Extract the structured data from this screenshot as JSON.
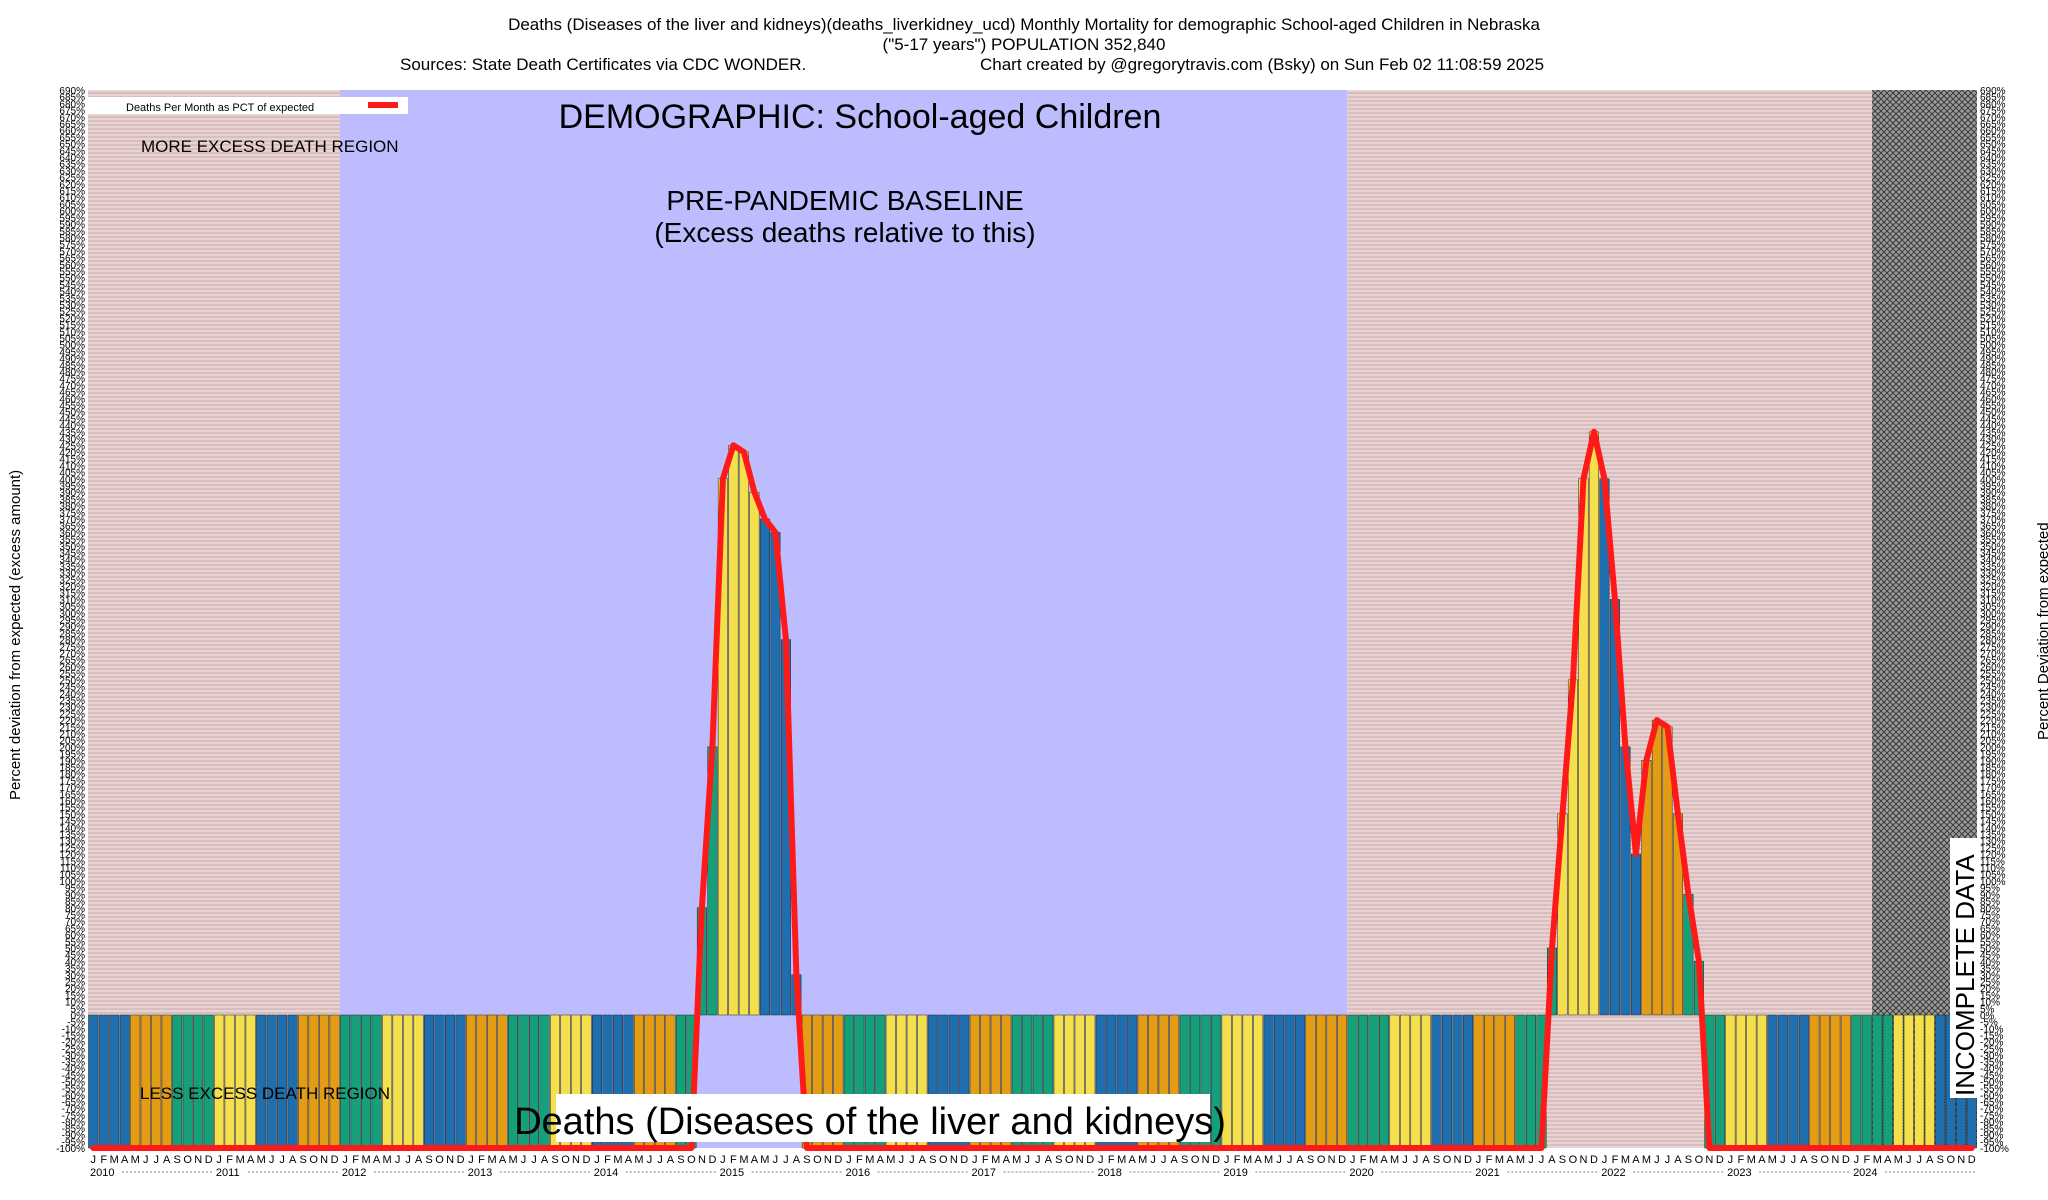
{
  "header": {
    "line1": "Deaths (Diseases of the liver and kidneys)(deaths_liverkidney_ucd) Monthly Mortality for demographic School-aged Children in Nebraska",
    "line2": "(\"5-17 years\") POPULATION 352,840",
    "sources": "Sources: State Death Certificates via CDC WONDER.",
    "credit": "Chart created by @gregorytravis.com (Bsky) on Sun Feb 02 11:08:59 2025"
  },
  "labels": {
    "demographic": "DEMOGRAPHIC: School-aged Children",
    "more_region": "MORE EXCESS DEATH REGION",
    "less_region": "LESS EXCESS DEATH REGION",
    "baseline_1": "PRE-PANDEMIC BASELINE",
    "baseline_2": "(Excess deaths relative to this)",
    "cause": "Deaths (Diseases of the liver and kidneys)",
    "incomplete": "INCOMPLETE DATA",
    "legend": "Deaths Per Month as PCT of expected",
    "ylabel_left": "Percent deviation from expected (excess amount)",
    "ylabel_right": "Percent Deviation from expected"
  },
  "colors": {
    "excess_region": "#e4c8c8",
    "baseline_region": "#bcbcff",
    "incomplete_region": "#8a8a8a",
    "curve": "#ff1a1a",
    "bar_palette": [
      "#1f6fae",
      "#e39d14",
      "#16a07a",
      "#f4e04d"
    ]
  },
  "chart_data": {
    "type": "bar",
    "title": "Deaths (Diseases of the liver and kidneys)(deaths_liverkidney_ucd) Monthly Mortality for demographic School-aged Children in Nebraska",
    "ylabel": "Percent deviation from expected (excess amount)",
    "ylim": [
      -100,
      690
    ],
    "y_ticks_step": 5,
    "start": "2010-01",
    "years": [
      "2010",
      "2011",
      "2012",
      "2013",
      "2014",
      "2015",
      "2016",
      "2017",
      "2018",
      "2019",
      "2020",
      "2021",
      "2022",
      "2023",
      "2024"
    ],
    "month_letters": [
      "J",
      "F",
      "M",
      "A",
      "M",
      "J",
      "J",
      "A",
      "S",
      "O",
      "N",
      "D"
    ],
    "regions": [
      {
        "name": "more/less excess",
        "from": "2010-01",
        "to": "2011-12"
      },
      {
        "name": "pre-pandemic baseline",
        "from": "2012-01",
        "to": "2019-12"
      },
      {
        "name": "more/less excess",
        "from": "2020-01",
        "to": "2024-03"
      },
      {
        "name": "incomplete data",
        "from": "2024-03",
        "to": "2024-12"
      }
    ],
    "series": [
      {
        "name": "Deaths Per Month as PCT of expected",
        "values": [
          -100,
          -100,
          -100,
          -100,
          -100,
          -100,
          -100,
          -100,
          -100,
          -100,
          -100,
          -100,
          -100,
          -100,
          -100,
          -100,
          -100,
          -100,
          -100,
          -100,
          -100,
          -100,
          -100,
          -100,
          -100,
          -100,
          -100,
          -100,
          -100,
          -100,
          -100,
          -100,
          -100,
          -100,
          -100,
          -100,
          -100,
          -100,
          -100,
          -100,
          -100,
          -100,
          -100,
          -100,
          -100,
          -100,
          -100,
          -100,
          -100,
          -100,
          -100,
          -100,
          -100,
          -100,
          -100,
          -100,
          -100,
          -100,
          80,
          200,
          400,
          425,
          420,
          390,
          370,
          360,
          280,
          30,
          -100,
          -100,
          -100,
          -100,
          -100,
          -100,
          -100,
          -100,
          -100,
          -100,
          -100,
          -100,
          -100,
          -100,
          -100,
          -100,
          -100,
          -100,
          -100,
          -100,
          -100,
          -100,
          -100,
          -100,
          -100,
          -100,
          -100,
          -100,
          -100,
          -100,
          -100,
          -100,
          -100,
          -100,
          -100,
          -100,
          -100,
          -100,
          -100,
          -100,
          -100,
          -100,
          -100,
          -100,
          -100,
          -100,
          -100,
          -100,
          -100,
          -100,
          -100,
          -100,
          -100,
          -100,
          -100,
          -100,
          -100,
          -100,
          -100,
          -100,
          -100,
          -100,
          -100,
          -100,
          -100,
          -100,
          -100,
          -100,
          -100,
          -100,
          -100,
          50,
          150,
          250,
          400,
          435,
          400,
          310,
          200,
          120,
          190,
          220,
          215,
          150,
          90,
          40,
          -100,
          -100,
          -100,
          -100,
          -100,
          -100,
          -100,
          -100,
          -100,
          -100,
          -100,
          -100,
          -100,
          -100,
          -100,
          -100,
          -100,
          -100,
          -100,
          -100,
          -100,
          -100,
          -100,
          -100,
          -100,
          -100,
          -100,
          -100,
          -100,
          -100,
          -100,
          -100,
          -100,
          -100,
          -100,
          -100,
          -100,
          -100,
          -100,
          -100,
          -100,
          -100,
          -100,
          -100,
          -100,
          -100,
          -100,
          -100,
          -100,
          -100,
          -100,
          -100,
          -100,
          -100,
          -100,
          -100,
          -100,
          -100,
          -100,
          -100,
          -100,
          -100,
          -100,
          -100,
          -100,
          -100,
          -100,
          -100,
          -100,
          -100,
          -100,
          -100,
          -100,
          -100,
          -100,
          -100,
          -100,
          -100,
          -100,
          -100,
          -100,
          -100,
          -100,
          -100,
          -100,
          -100,
          -100,
          -100,
          -100,
          -100,
          -100,
          -100,
          -100,
          -100,
          -100,
          -100,
          -100,
          -100,
          -100,
          -100,
          -100,
          -100,
          -100,
          -100,
          -100,
          -100,
          -100,
          -100,
          -100,
          -100,
          -100,
          -100,
          -100,
          -100,
          -100,
          -100,
          -100,
          -100,
          -100,
          -100,
          -100,
          -100,
          -100,
          -100,
          -100,
          -100,
          -100,
          -100,
          -100,
          -100,
          -100,
          -100,
          -100,
          -100,
          -100,
          -100,
          -100,
          -100,
          -100,
          -100,
          -100,
          -100,
          -100,
          -100,
          -100,
          -100,
          -100,
          -100,
          -100,
          -100,
          -100,
          -100,
          -100,
          -100,
          -100,
          -100,
          -100,
          -100,
          -100,
          -100,
          -100,
          -100,
          -100,
          -100,
          -100,
          -100,
          -100,
          -100,
          -100,
          -100,
          -100,
          -100,
          -100,
          -100,
          -100,
          -100,
          -100,
          -100,
          -100,
          -100,
          -100,
          -100,
          -100,
          -100,
          -100,
          -100,
          -100,
          -100,
          -100,
          -100,
          -100,
          -100,
          -100,
          -100,
          -100,
          -100,
          -100,
          -100,
          -100,
          -100,
          -100,
          -100,
          -100,
          -100,
          -100,
          -100,
          -100,
          -100,
          -100,
          -100,
          -100,
          -100,
          -100,
          -100,
          -100,
          -100,
          -100,
          -100,
          -100,
          -100,
          -100,
          -100,
          -100,
          -100,
          -100,
          -100,
          -100,
          -100,
          -100,
          -100,
          -100,
          -100,
          -100,
          -100,
          -100,
          -100,
          -100,
          -100,
          -100,
          -100,
          -100,
          -100,
          -100,
          -100,
          -100,
          -100,
          -100,
          -100,
          -100,
          -100,
          -100,
          -100,
          -100,
          -100,
          -100,
          -100,
          -100,
          -100,
          -100,
          -100,
          -100,
          -100,
          -100,
          -100,
          -100,
          -100,
          -100,
          -100,
          -100,
          -100,
          -100,
          -100,
          -100,
          -100,
          -100,
          -100,
          -100,
          -100,
          -100,
          -100,
          -100,
          -100,
          -100,
          -100,
          -100,
          -100,
          -100,
          -100,
          -100,
          -100,
          -100,
          -100,
          -100,
          -100,
          -100,
          -100,
          -100,
          -100,
          -100,
          -100,
          -100,
          -100,
          -100,
          -100,
          -100,
          -100,
          -100,
          -100,
          -100,
          -100,
          -100,
          -100,
          -100,
          -100,
          -100,
          -100,
          -100,
          -100,
          -100,
          -100,
          -100,
          -100,
          -100,
          -100,
          -100,
          -100,
          -100,
          -100,
          -100,
          -100,
          -100,
          -100,
          -100,
          -100,
          -100,
          -100,
          -100,
          -100,
          -100,
          -100,
          -100,
          -100,
          -100,
          -100,
          -100,
          -100,
          -100,
          -100,
          -100,
          -100,
          -100,
          -100,
          -100,
          -100,
          -100,
          -100,
          -100,
          -100,
          -100,
          -100,
          -100,
          -100,
          -100,
          -100,
          -100,
          -100,
          -100,
          -100,
          -100,
          -100,
          -100,
          -100,
          -100,
          -100,
          -100,
          -100,
          -100,
          -100,
          -100,
          -100,
          -100,
          -100,
          -100,
          -100,
          -100,
          -100,
          -100,
          -100,
          -100,
          -100,
          -100,
          -100,
          -100,
          -100,
          -100,
          -100,
          -100,
          -100,
          -100,
          -100,
          -100,
          -100,
          -100,
          -100,
          -100,
          -100,
          -100,
          -100,
          -100,
          -100,
          -100,
          -100,
          -100,
          -100,
          -100,
          -100,
          -100,
          -100,
          -100,
          -100,
          -100,
          -100,
          -100,
          -100,
          -100,
          -100,
          -100,
          -100,
          -100,
          -100,
          -100,
          -100,
          -100,
          -100,
          -100,
          -100,
          -100,
          -100,
          -100,
          -100,
          -100,
          -100,
          -100,
          -100,
          -100,
          -100,
          -100,
          -100,
          -100,
          -100,
          -100,
          -100,
          -100,
          -100,
          -100,
          -100,
          -100,
          -100,
          -100,
          -100,
          -100,
          -100,
          -100,
          -100,
          -100,
          -100,
          -100,
          -100,
          -100,
          -100,
          -100,
          -100,
          -100,
          -100,
          -100,
          -100,
          -100,
          -100,
          -100,
          -100,
          -100,
          -100,
          -100,
          -100,
          -100,
          -100,
          -100,
          -100,
          -100,
          -100,
          -100,
          -100,
          -100,
          -100,
          -100,
          -100,
          -100,
          -100,
          -100,
          -100,
          -100,
          -100,
          -100,
          -100,
          -100,
          -100
        ]
      }
    ]
  }
}
